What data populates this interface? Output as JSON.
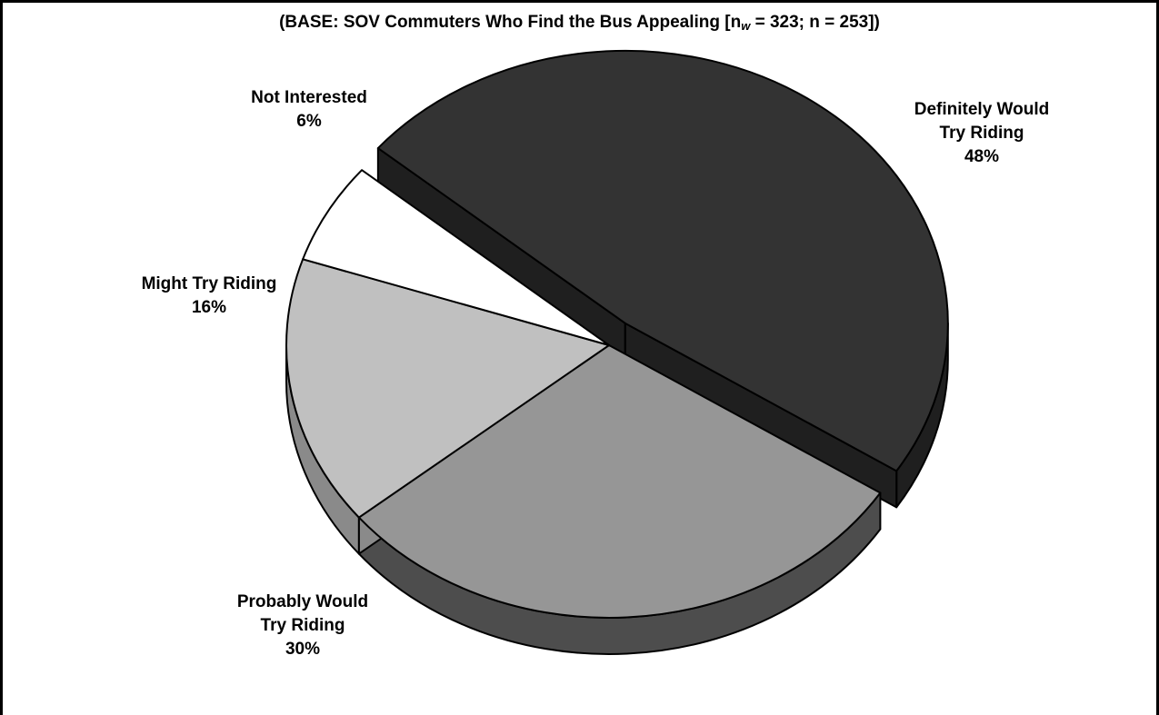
{
  "chart_data": {
    "type": "pie",
    "title": {
      "prefix": "(BASE: SOV Commuters Who Find the Bus Appealing [n",
      "sub": "w",
      "suffix": " = 323; n = 253])"
    },
    "exploded": "Definitely Would Try Riding",
    "three_d": true,
    "slices": [
      {
        "label_lines": [
          "Definitely Would",
          "Try Riding"
        ],
        "value": 48,
        "value_text": "48%",
        "top_color": "#333333",
        "side_color": "#1f1f1f"
      },
      {
        "label_lines": [
          "Probably Would",
          "Try Riding"
        ],
        "value": 30,
        "value_text": "30%",
        "top_color": "#969696",
        "side_color": "#4d4d4d"
      },
      {
        "label_lines": [
          "Might Try Riding"
        ],
        "value": 16,
        "value_text": "16%",
        "top_color": "#c0c0c0",
        "side_color": "#8a8a8a"
      },
      {
        "label_lines": [
          "Not Interested"
        ],
        "value": 6,
        "value_text": "6%",
        "top_color": "#ffffff",
        "side_color": "#dddddd"
      }
    ]
  }
}
